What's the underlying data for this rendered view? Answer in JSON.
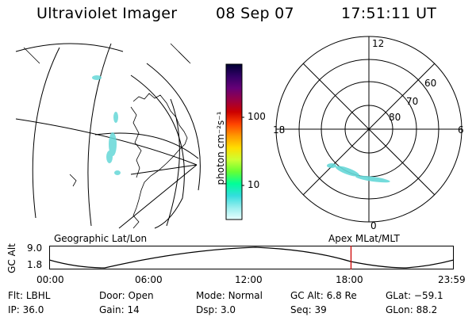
{
  "header": {
    "title": "Ultraviolet Imager",
    "date": "08 Sep 07",
    "time": "17:51:11 UT"
  },
  "colorbar": {
    "unit_label": "photon cm⁻²s⁻¹",
    "ticks": [
      "100",
      "10"
    ]
  },
  "polar_plot": {
    "mlt_labels": {
      "top": "12",
      "left": "18",
      "right": "6",
      "bottom": "0"
    },
    "lat_labels": [
      "60",
      "70",
      "80"
    ]
  },
  "strip": {
    "left_label": "Geographic Lat/Lon",
    "right_label": "Apex MLat/MLT",
    "axis_title": "GC Alt",
    "y_ticks": [
      "9.0",
      "1.8"
    ],
    "x_ticks": [
      "00:00",
      "06:00",
      "12:00",
      "18:00",
      "23:59"
    ],
    "cursor_fraction": 0.746,
    "cursor_color": "#cc0000"
  },
  "info": {
    "row1": [
      {
        "label": "Flt:",
        "value": "LBHL"
      },
      {
        "label": "Door:",
        "value": "Open"
      },
      {
        "label": "Mode:",
        "value": "Normal"
      },
      {
        "label": "GC Alt:",
        "value": "6.8 Re"
      },
      {
        "label": "GLat:",
        "value": "−59.1"
      }
    ],
    "row2": [
      {
        "label": "IP:",
        "value": "36.0"
      },
      {
        "label": "Gain:",
        "value": "14"
      },
      {
        "label": "Dsp:",
        "value": "3.0"
      },
      {
        "label": "Seq:",
        "value": "39"
      },
      {
        "label": "GLon:",
        "value": "88.2"
      }
    ]
  },
  "colors": {
    "aurora": "#66d8d8",
    "grid": "#000000",
    "colorbar": [
      "#000033",
      "#330066",
      "#660077",
      "#990044",
      "#cc0000",
      "#ff4400",
      "#ff9900",
      "#ffdd00",
      "#ccff33",
      "#66ff33",
      "#00ff99",
      "#33dddd",
      "#99eeee",
      "#e8ffff"
    ]
  }
}
